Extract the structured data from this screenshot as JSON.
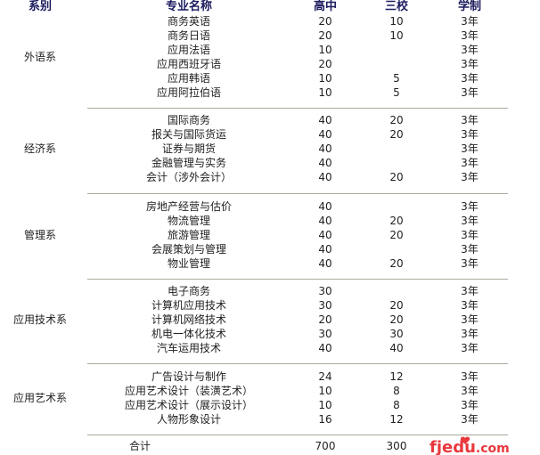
{
  "header": {
    "department": "系别",
    "major": "专业名称",
    "high_school": "高中",
    "three_schools": "三校",
    "duration": "学制"
  },
  "groups": [
    {
      "department": "外语系",
      "rows": [
        {
          "major": "商务英语",
          "high_school": "20",
          "three_schools": "10",
          "duration": "3年"
        },
        {
          "major": "商务日语",
          "high_school": "20",
          "three_schools": "10",
          "duration": "3年"
        },
        {
          "major": "应用法语",
          "high_school": "10",
          "three_schools": "",
          "duration": "3年"
        },
        {
          "major": "应用西班牙语",
          "high_school": "20",
          "three_schools": "",
          "duration": "3年"
        },
        {
          "major": "应用韩语",
          "high_school": "10",
          "three_schools": "5",
          "duration": "3年"
        },
        {
          "major": "应用阿拉伯语",
          "high_school": "10",
          "three_schools": "5",
          "duration": "3年"
        }
      ]
    },
    {
      "department": "经济系",
      "rows": [
        {
          "major": "国际商务",
          "high_school": "40",
          "three_schools": "20",
          "duration": "3年"
        },
        {
          "major": "报关与国际货运",
          "high_school": "40",
          "three_schools": "20",
          "duration": "3年"
        },
        {
          "major": "证券与期货",
          "high_school": "40",
          "three_schools": "",
          "duration": "3年"
        },
        {
          "major": "金融管理与实务",
          "high_school": "40",
          "three_schools": "",
          "duration": "3年"
        },
        {
          "major": "会计（涉外会计）",
          "high_school": "40",
          "three_schools": "20",
          "duration": "3年"
        }
      ]
    },
    {
      "department": "管理系",
      "rows": [
        {
          "major": "房地产经营与估价",
          "high_school": "40",
          "three_schools": "",
          "duration": "3年"
        },
        {
          "major": "物流管理",
          "high_school": "40",
          "three_schools": "20",
          "duration": "3年"
        },
        {
          "major": "旅游管理",
          "high_school": "40",
          "three_schools": "20",
          "duration": "3年"
        },
        {
          "major": "会展策划与管理",
          "high_school": "40",
          "three_schools": "",
          "duration": "3年"
        },
        {
          "major": "物业管理",
          "high_school": "40",
          "three_schools": "20",
          "duration": "3年"
        }
      ]
    },
    {
      "department": "应用技术系",
      "rows": [
        {
          "major": "电子商务",
          "high_school": "30",
          "three_schools": "",
          "duration": "3年"
        },
        {
          "major": "计算机应用技术",
          "high_school": "30",
          "three_schools": "20",
          "duration": "3年"
        },
        {
          "major": "计算机网络技术",
          "high_school": "20",
          "three_schools": "20",
          "duration": "3年"
        },
        {
          "major": "机电一体化技术",
          "high_school": "30",
          "three_schools": "30",
          "duration": "3年"
        },
        {
          "major": "汽车运用技术",
          "high_school": "40",
          "three_schools": "40",
          "duration": "3年"
        }
      ]
    },
    {
      "department": "应用艺术系",
      "rows": [
        {
          "major": "广告设计与制作",
          "high_school": "24",
          "three_schools": "12",
          "duration": "3年"
        },
        {
          "major": "应用艺术设计（装潢艺术）",
          "high_school": "10",
          "three_schools": "8",
          "duration": "3年"
        },
        {
          "major": "应用艺术设计（展示设计）",
          "high_school": "10",
          "three_schools": "8",
          "duration": "3年"
        },
        {
          "major": "人物形象设计",
          "high_school": "16",
          "three_schools": "12",
          "duration": "3年"
        }
      ]
    }
  ],
  "total": {
    "label": "合计",
    "high_school": "700",
    "three_schools": "300"
  },
  "watermark": {
    "text": "fjedu.com",
    "color": "#e8383d"
  }
}
